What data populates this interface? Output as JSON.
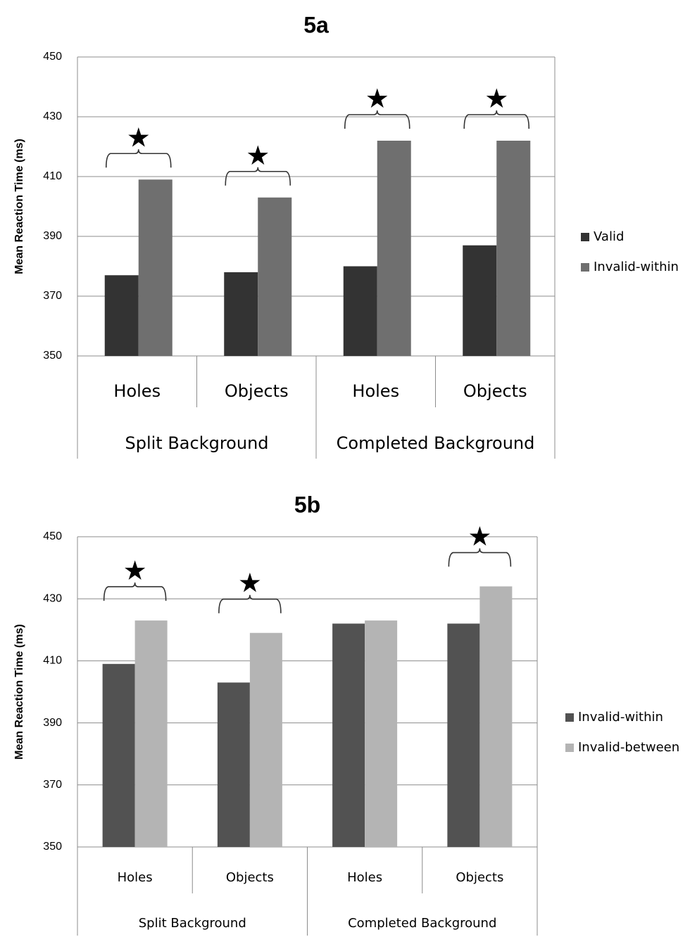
{
  "chart_data": [
    {
      "type": "bar",
      "title": "5a",
      "ylabel": "Mean Reaction Time (ms)",
      "ylim": [
        350,
        450
      ],
      "yticks": [
        350,
        370,
        390,
        410,
        430,
        450
      ],
      "grid": true,
      "legend_position": "right",
      "categories": [
        "Holes",
        "Objects",
        "Holes",
        "Objects"
      ],
      "groups": [
        "Split Background",
        "Completed Background"
      ],
      "series": [
        {
          "name": "Valid",
          "color": "#333333",
          "values": [
            377,
            378,
            380,
            387
          ]
        },
        {
          "name": "Invalid-within",
          "color": "#6f6f6f",
          "values": [
            409,
            403,
            422,
            422
          ]
        }
      ],
      "significance_marker": "★",
      "significant": [
        true,
        true,
        true,
        true
      ]
    },
    {
      "type": "bar",
      "title": "5b",
      "ylabel": "Mean Reaction Time (ms)",
      "ylim": [
        350,
        450
      ],
      "yticks": [
        350,
        370,
        390,
        410,
        430,
        450
      ],
      "grid": true,
      "legend_position": "right",
      "categories": [
        "Holes",
        "Objects",
        "Holes",
        "Objects"
      ],
      "groups": [
        "Split Background",
        "Completed Background"
      ],
      "series": [
        {
          "name": "Invalid-within",
          "color": "#525252",
          "values": [
            409,
            403,
            422,
            422
          ]
        },
        {
          "name": "Invalid-between",
          "color": "#b4b4b4",
          "values": [
            423,
            419,
            423,
            434
          ]
        }
      ],
      "significance_marker": "★",
      "significant": [
        true,
        true,
        false,
        true
      ]
    }
  ]
}
